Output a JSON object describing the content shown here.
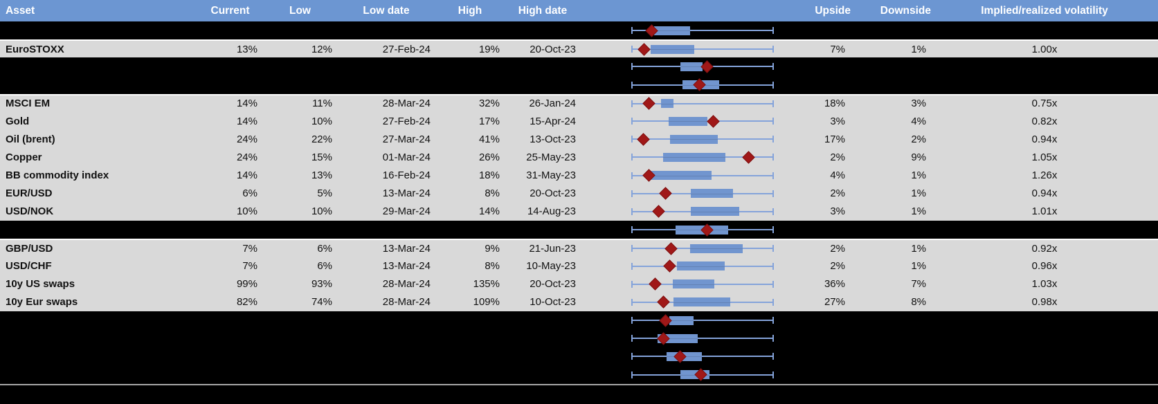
{
  "colors": {
    "header_bg": "#6c96d2",
    "row_bg": "#d9d9d9",
    "hidden_row_bg": "#000000",
    "box_fill": "#7195cf",
    "whisker": "#84a3da",
    "marker": "#a01818",
    "separator_line": "#a6a6a6"
  },
  "header": {
    "asset": "Asset",
    "current": "Current",
    "low": "Low",
    "low_date": "Low date",
    "high": "High",
    "high_date": "High date",
    "upside": "Upside",
    "downside": "Downside",
    "implied": "Implied/realized volatility"
  },
  "chart_meta": {
    "type": "boxplot-row",
    "scale": "percent of whisker span (0 = low whisker, 100 = high whisker)",
    "marker_meaning": "current value (red diamond)"
  },
  "rows": [
    {
      "hidden": true,
      "plot": {
        "lo": 0,
        "q1": 15.7,
        "q3": 41.2,
        "hi": 100,
        "marker": 14.2
      }
    },
    {
      "hidden": false,
      "separator_top": true,
      "asset": "EuroSTOXX",
      "current": "13%",
      "low": "12%",
      "low_date": "27-Feb-24",
      "high": "19%",
      "high_date": "20-Oct-23",
      "upside": "7%",
      "downside": "1%",
      "implied": "1.00x",
      "plot": {
        "lo": 0,
        "q1": 13.2,
        "q3": 44.1,
        "hi": 100,
        "marker": 8.8
      }
    },
    {
      "hidden": true,
      "plot": {
        "lo": 0,
        "q1": 34.3,
        "q3": 50.0,
        "hi": 100,
        "marker": 53.4
      }
    },
    {
      "hidden": true,
      "plot": {
        "lo": 0,
        "q1": 35.8,
        "q3": 61.8,
        "hi": 100,
        "marker": 48.0
      }
    },
    {
      "hidden": false,
      "separator_top": true,
      "asset": "MSCI EM",
      "current": "14%",
      "low": "11%",
      "low_date": "28-Mar-24",
      "high": "32%",
      "high_date": "26-Jan-24",
      "upside": "18%",
      "downside": "3%",
      "implied": "0.75x",
      "plot": {
        "lo": 0,
        "q1": 20.6,
        "q3": 29.4,
        "hi": 100,
        "marker": 11.8
      }
    },
    {
      "hidden": false,
      "asset": "Gold",
      "current": "14%",
      "low": "10%",
      "low_date": "27-Feb-24",
      "high": "17%",
      "high_date": "15-Apr-24",
      "upside": "3%",
      "downside": "4%",
      "implied": "0.82x",
      "plot": {
        "lo": 0,
        "q1": 26.0,
        "q3": 53.4,
        "hi": 100,
        "marker": 57.4
      }
    },
    {
      "hidden": false,
      "asset": "Oil (brent)",
      "current": "24%",
      "low": "22%",
      "low_date": "27-Mar-24",
      "high": "41%",
      "high_date": "13-Oct-23",
      "upside": "17%",
      "downside": "2%",
      "implied": "0.94x",
      "plot": {
        "lo": 0,
        "q1": 27.0,
        "q3": 60.8,
        "hi": 100,
        "marker": 8.3
      }
    },
    {
      "hidden": false,
      "asset": "Copper",
      "current": "24%",
      "low": "15%",
      "low_date": "01-Mar-24",
      "high": "26%",
      "high_date": "25-May-23",
      "upside": "2%",
      "downside": "9%",
      "implied": "1.05x",
      "plot": {
        "lo": 0,
        "q1": 22.1,
        "q3": 66.2,
        "hi": 100,
        "marker": 82.8
      }
    },
    {
      "hidden": false,
      "asset": "BB commodity index",
      "current": "14%",
      "low": "13%",
      "low_date": "16-Feb-24",
      "high": "18%",
      "high_date": "31-May-23",
      "upside": "4%",
      "downside": "1%",
      "implied": "1.26x",
      "plot": {
        "lo": 0,
        "q1": 13.2,
        "q3": 56.4,
        "hi": 100,
        "marker": 11.8
      }
    },
    {
      "hidden": false,
      "asset": "EUR/USD",
      "current": "6%",
      "low": "5%",
      "low_date": "13-Mar-24",
      "high": "8%",
      "high_date": "20-Oct-23",
      "upside": "2%",
      "downside": "1%",
      "implied": "0.94x",
      "plot": {
        "lo": 0,
        "q1": 41.7,
        "q3": 71.6,
        "hi": 100,
        "marker": 24.0
      }
    },
    {
      "hidden": false,
      "asset": "USD/NOK",
      "current": "10%",
      "low": "10%",
      "low_date": "29-Mar-24",
      "high": "14%",
      "high_date": "14-Aug-23",
      "upside": "3%",
      "downside": "1%",
      "implied": "1.01x",
      "plot": {
        "lo": 0,
        "q1": 41.7,
        "q3": 76.0,
        "hi": 100,
        "marker": 19.1
      }
    },
    {
      "hidden": true,
      "plot": {
        "lo": 0,
        "q1": 30.9,
        "q3": 68.1,
        "hi": 100,
        "marker": 53.4
      }
    },
    {
      "hidden": false,
      "separator_top": true,
      "asset": "GBP/USD",
      "current": "7%",
      "low": "6%",
      "low_date": "13-Mar-24",
      "high": "9%",
      "high_date": "21-Jun-23",
      "upside": "2%",
      "downside": "1%",
      "implied": "0.92x",
      "plot": {
        "lo": 0,
        "q1": 41.2,
        "q3": 78.4,
        "hi": 100,
        "marker": 27.9
      }
    },
    {
      "hidden": false,
      "asset": "USD/CHF",
      "current": "7%",
      "low": "6%",
      "low_date": "13-Mar-24",
      "high": "8%",
      "high_date": "10-May-23",
      "upside": "2%",
      "downside": "1%",
      "implied": "0.96x",
      "plot": {
        "lo": 0,
        "q1": 31.9,
        "q3": 65.7,
        "hi": 100,
        "marker": 26.5
      }
    },
    {
      "hidden": false,
      "asset": "10y US swaps",
      "current": "99%",
      "low": "93%",
      "low_date": "28-Mar-24",
      "high": "135%",
      "high_date": "20-Oct-23",
      "upside": "36%",
      "downside": "7%",
      "implied": "1.03x",
      "plot": {
        "lo": 0,
        "q1": 28.9,
        "q3": 58.3,
        "hi": 100,
        "marker": 16.2
      }
    },
    {
      "hidden": false,
      "asset": "10y Eur swaps",
      "current": "82%",
      "low": "74%",
      "low_date": "28-Mar-24",
      "high": "109%",
      "high_date": "10-Oct-23",
      "upside": "27%",
      "downside": "8%",
      "implied": "0.98x",
      "plot": {
        "lo": 0,
        "q1": 29.4,
        "q3": 69.6,
        "hi": 100,
        "marker": 22.1
      }
    },
    {
      "hidden": true,
      "plot": {
        "lo": 0,
        "q1": 26.5,
        "q3": 43.6,
        "hi": 100,
        "marker": 24.0
      }
    },
    {
      "hidden": true,
      "plot": {
        "lo": 0,
        "q1": 18.1,
        "q3": 46.6,
        "hi": 100,
        "marker": 22.1
      }
    },
    {
      "hidden": true,
      "plot": {
        "lo": 0,
        "q1": 24.5,
        "q3": 49.5,
        "hi": 100,
        "marker": 34.3
      }
    },
    {
      "hidden": true,
      "plot": {
        "lo": 0,
        "q1": 34.3,
        "q3": 54.9,
        "hi": 100,
        "marker": 49.0
      }
    }
  ]
}
